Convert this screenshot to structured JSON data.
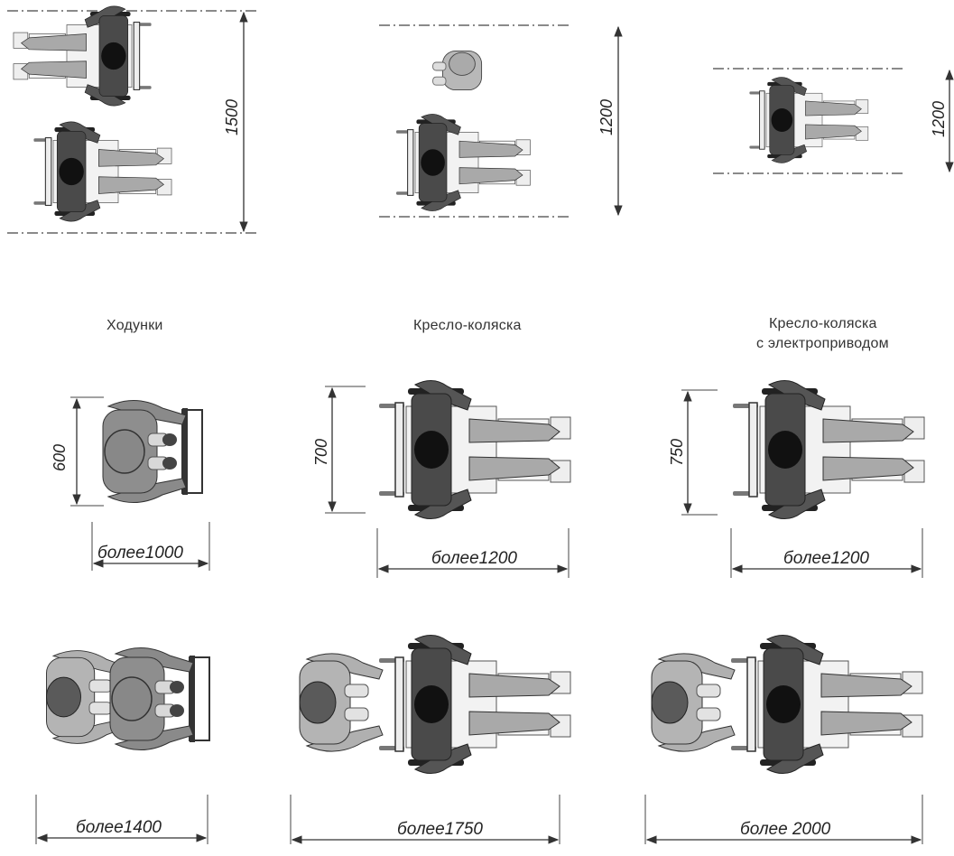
{
  "colors": {
    "occupant": "#4a4a4a",
    "occupant_light": "#9a9a9a",
    "head": "#111111",
    "helper": "#a8a8a8",
    "legs": "#d8d8d8",
    "frame": "#222222",
    "chair_fill": "#f2f2f2",
    "line": "#333333"
  },
  "captions": {
    "walker": "Ходунки",
    "wheelchair": "Кресло-коляска",
    "powered_line1": "Кресло-коляска",
    "powered_line2": "с электроприводом"
  },
  "top_row": {
    "two_chairs": "1500",
    "chair_and_walker": "1200",
    "single_chair": "1200"
  },
  "middle_row": {
    "walker_width": "600",
    "walker_length": "более1000",
    "wheelchair_width": "700",
    "wheelchair_length": "более1200",
    "powered_width": "750",
    "powered_length": "более1200"
  },
  "bottom_row": {
    "walker_with_helper": "более1400",
    "wheelchair_with_helper": "более1750",
    "powered_with_helper": "более 2000"
  }
}
